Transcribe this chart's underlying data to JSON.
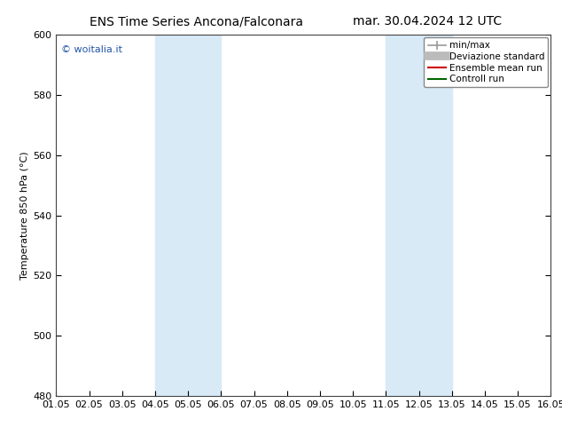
{
  "title_left": "ENS Time Series Ancona/Falconara",
  "title_right": "mar. 30.04.2024 12 UTC",
  "ylabel": "Temperature 850 hPa (°C)",
  "ylim": [
    480,
    600
  ],
  "yticks": [
    480,
    500,
    520,
    540,
    560,
    580,
    600
  ],
  "xlim": [
    0,
    15
  ],
  "xtick_labels": [
    "01.05",
    "02.05",
    "03.05",
    "04.05",
    "05.05",
    "06.05",
    "07.05",
    "08.05",
    "09.05",
    "10.05",
    "11.05",
    "12.05",
    "13.05",
    "14.05",
    "15.05",
    "16.05"
  ],
  "xtick_positions": [
    0,
    1,
    2,
    3,
    4,
    5,
    6,
    7,
    8,
    9,
    10,
    11,
    12,
    13,
    14,
    15
  ],
  "shaded_bands": [
    {
      "xmin": 3,
      "xmax": 5,
      "color": "#d9eaf7"
    },
    {
      "xmin": 10,
      "xmax": 12,
      "color": "#d9eaf7"
    }
  ],
  "watermark": "© woitalia.it",
  "watermark_color": "#2255aa",
  "bg_color": "#ffffff",
  "plot_bg_color": "#ffffff",
  "legend_items": [
    {
      "label": "min/max",
      "color": "#999999",
      "lw": 1.2,
      "style": "minmax"
    },
    {
      "label": "Deviazione standard",
      "color": "#bbbbbb",
      "lw": 7,
      "style": "line"
    },
    {
      "label": "Ensemble mean run",
      "color": "#cc0000",
      "lw": 1.5,
      "style": "line"
    },
    {
      "label": "Controll run",
      "color": "#006600",
      "lw": 1.5,
      "style": "line"
    }
  ],
  "title_fontsize": 10,
  "axis_label_fontsize": 8,
  "tick_fontsize": 8,
  "legend_fontsize": 7.5
}
